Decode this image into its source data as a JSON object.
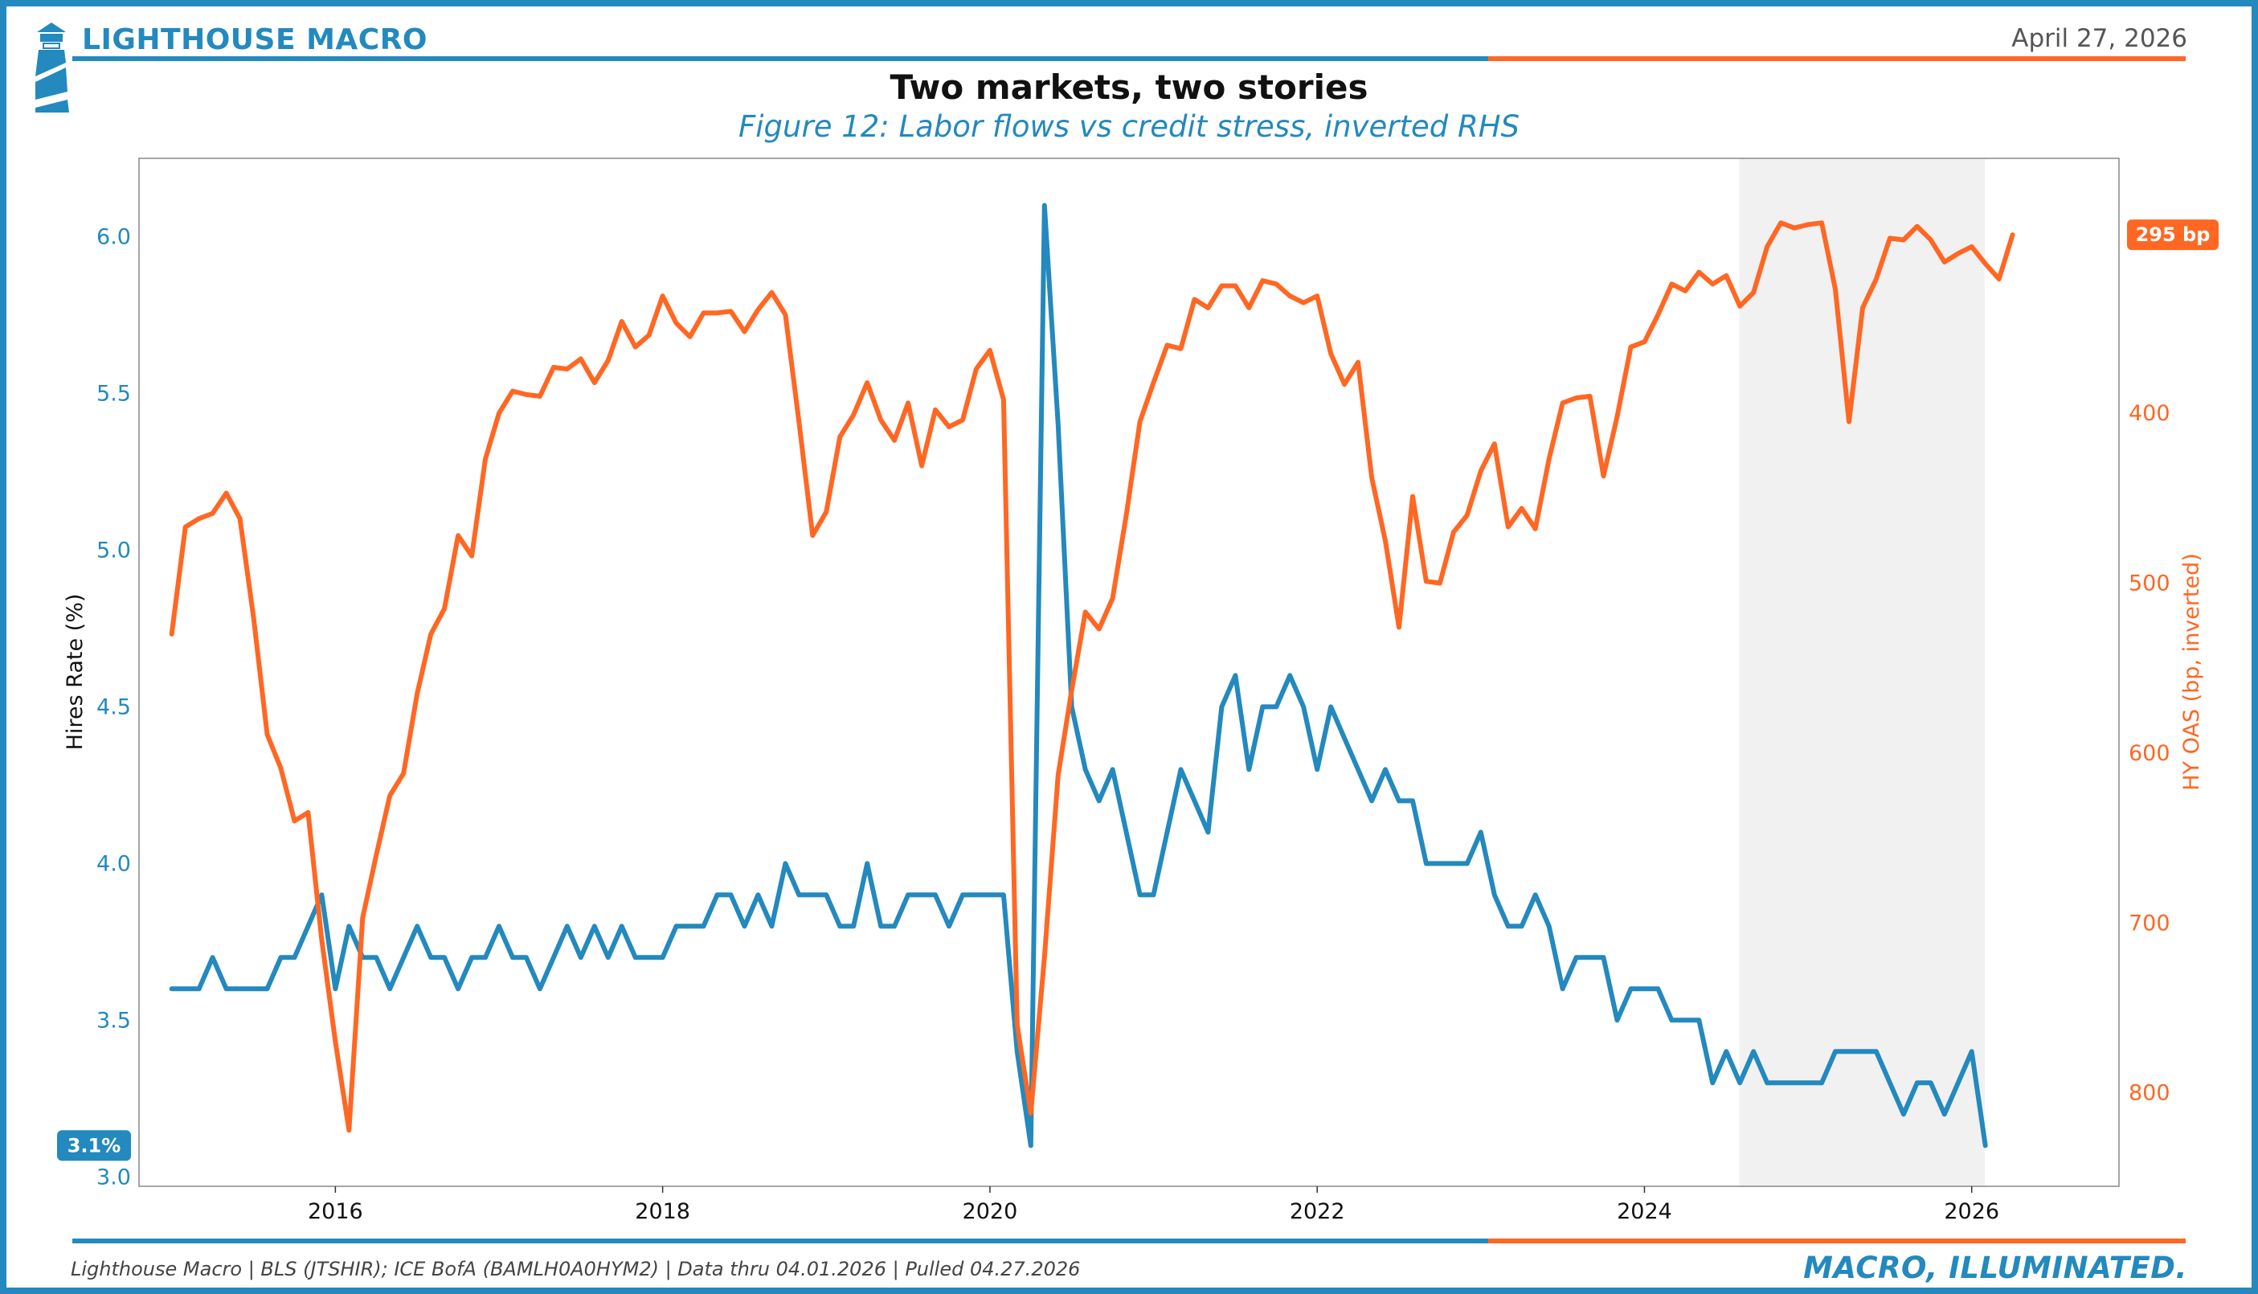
{
  "header": {
    "brand": "LIGHTHOUSE MACRO",
    "date": "April 27, 2026",
    "title": "Two markets, two stories",
    "subtitle": "Figure 12: Labor flows vs credit stress, inverted RHS"
  },
  "footer": {
    "source": "Lighthouse Macro | BLS (JTSHIR); ICE BofA (BAMLH0A0HYM2) | Data thru 04.01.2026 | Pulled 04.27.2026",
    "tagline": "MACRO, ILLUMINATED."
  },
  "colors": {
    "blue": "#2389BE",
    "orange": "#FF6723",
    "shade": "#F1F1F1",
    "frame": "#2389BE"
  },
  "icons": {
    "logo": "lighthouse-icon"
  },
  "chart_data": {
    "type": "line",
    "x_range": [
      2014.8,
      2026.9
    ],
    "x_ticks": [
      2016,
      2018,
      2020,
      2022,
      2024,
      2026
    ],
    "x_tick_labels": [
      "2016",
      "2018",
      "2020",
      "2022",
      "2024",
      "2026"
    ],
    "shaded_region": [
      2024.58,
      2026.08
    ],
    "left_axis": {
      "label": "Hires Rate (%)",
      "range": [
        2.97,
        6.25
      ],
      "ticks": [
        3.0,
        3.5,
        4.0,
        4.5,
        5.0,
        5.5,
        6.0
      ],
      "tick_labels": [
        "3.0",
        "3.5",
        "4.0",
        "4.5",
        "5.0",
        "5.5",
        "6.0"
      ]
    },
    "right_axis": {
      "label": "HY OAS (bp, inverted)",
      "inverted": true,
      "range": [
        250,
        855
      ],
      "ticks": [
        400,
        500,
        600,
        700,
        800
      ],
      "tick_labels": [
        "400",
        "500",
        "600",
        "700",
        "800"
      ]
    },
    "series": [
      {
        "name": "Hires Rate",
        "axis": "left",
        "color": "#2389BE",
        "start": 2015.0,
        "step": 0.0833333,
        "values": [
          3.6,
          3.6,
          3.6,
          3.7,
          3.6,
          3.6,
          3.6,
          3.6,
          3.7,
          3.7,
          3.8,
          3.9,
          3.6,
          3.8,
          3.7,
          3.7,
          3.6,
          3.7,
          3.8,
          3.7,
          3.7,
          3.6,
          3.7,
          3.7,
          3.8,
          3.7,
          3.7,
          3.6,
          3.7,
          3.8,
          3.7,
          3.8,
          3.7,
          3.8,
          3.7,
          3.7,
          3.7,
          3.8,
          3.8,
          3.8,
          3.9,
          3.9,
          3.8,
          3.9,
          3.8,
          4.0,
          3.9,
          3.9,
          3.9,
          3.8,
          3.8,
          4.0,
          3.8,
          3.8,
          3.9,
          3.9,
          3.9,
          3.8,
          3.9,
          3.9,
          3.9,
          3.9,
          3.4,
          3.1,
          6.1,
          5.4,
          4.5,
          4.3,
          4.2,
          4.3,
          4.1,
          3.9,
          3.9,
          4.1,
          4.3,
          4.2,
          4.1,
          4.5,
          4.6,
          4.3,
          4.5,
          4.5,
          4.6,
          4.5,
          4.3,
          4.5,
          4.4,
          4.3,
          4.2,
          4.3,
          4.2,
          4.2,
          4.0,
          4.0,
          4.0,
          4.0,
          4.1,
          3.9,
          3.8,
          3.8,
          3.9,
          3.8,
          3.6,
          3.7,
          3.7,
          3.7,
          3.5,
          3.6,
          3.6,
          3.6,
          3.5,
          3.5,
          3.5,
          3.3,
          3.4,
          3.3,
          3.4,
          3.3,
          3.3,
          3.3,
          3.3,
          3.3,
          3.4,
          3.4,
          3.4,
          3.4,
          3.3,
          3.2,
          3.3,
          3.3,
          3.2,
          3.3,
          3.4,
          3.1
        ],
        "last_label": "3.1%"
      },
      {
        "name": "HY OAS",
        "axis": "right",
        "color": "#FF6723",
        "start": 2015.0,
        "step": 0.0833333,
        "values": [
          530,
          467,
          462,
          459,
          447,
          462,
          520,
          589,
          609,
          640,
          635,
          710,
          770,
          822,
          697,
          660,
          625,
          612,
          565,
          530,
          515,
          472,
          484,
          427,
          400,
          387,
          389,
          390,
          373,
          374,
          368,
          382,
          369,
          346,
          361,
          354,
          331,
          347,
          355,
          341,
          341,
          340,
          352,
          339,
          329,
          342,
          405,
          472,
          458,
          414,
          401,
          382,
          404,
          416,
          394,
          431,
          398,
          408,
          404,
          374,
          363,
          392,
          760,
          812,
          720,
          613,
          563,
          517,
          527,
          509,
          460,
          405,
          382,
          360,
          362,
          333,
          338,
          325,
          325,
          338,
          322,
          324,
          331,
          335,
          331,
          365,
          383,
          370,
          438,
          475,
          526,
          449,
          499,
          500,
          470,
          460,
          434,
          418,
          467,
          456,
          468,
          427,
          394,
          391,
          390,
          437,
          402,
          361,
          358,
          342,
          324,
          328,
          317,
          324,
          319,
          337,
          329,
          302,
          288,
          291,
          289,
          288,
          327,
          405,
          338,
          321,
          297,
          298,
          290,
          298,
          311,
          306,
          302,
          312,
          321,
          295
        ],
        "last_label": "295 bp"
      }
    ]
  }
}
